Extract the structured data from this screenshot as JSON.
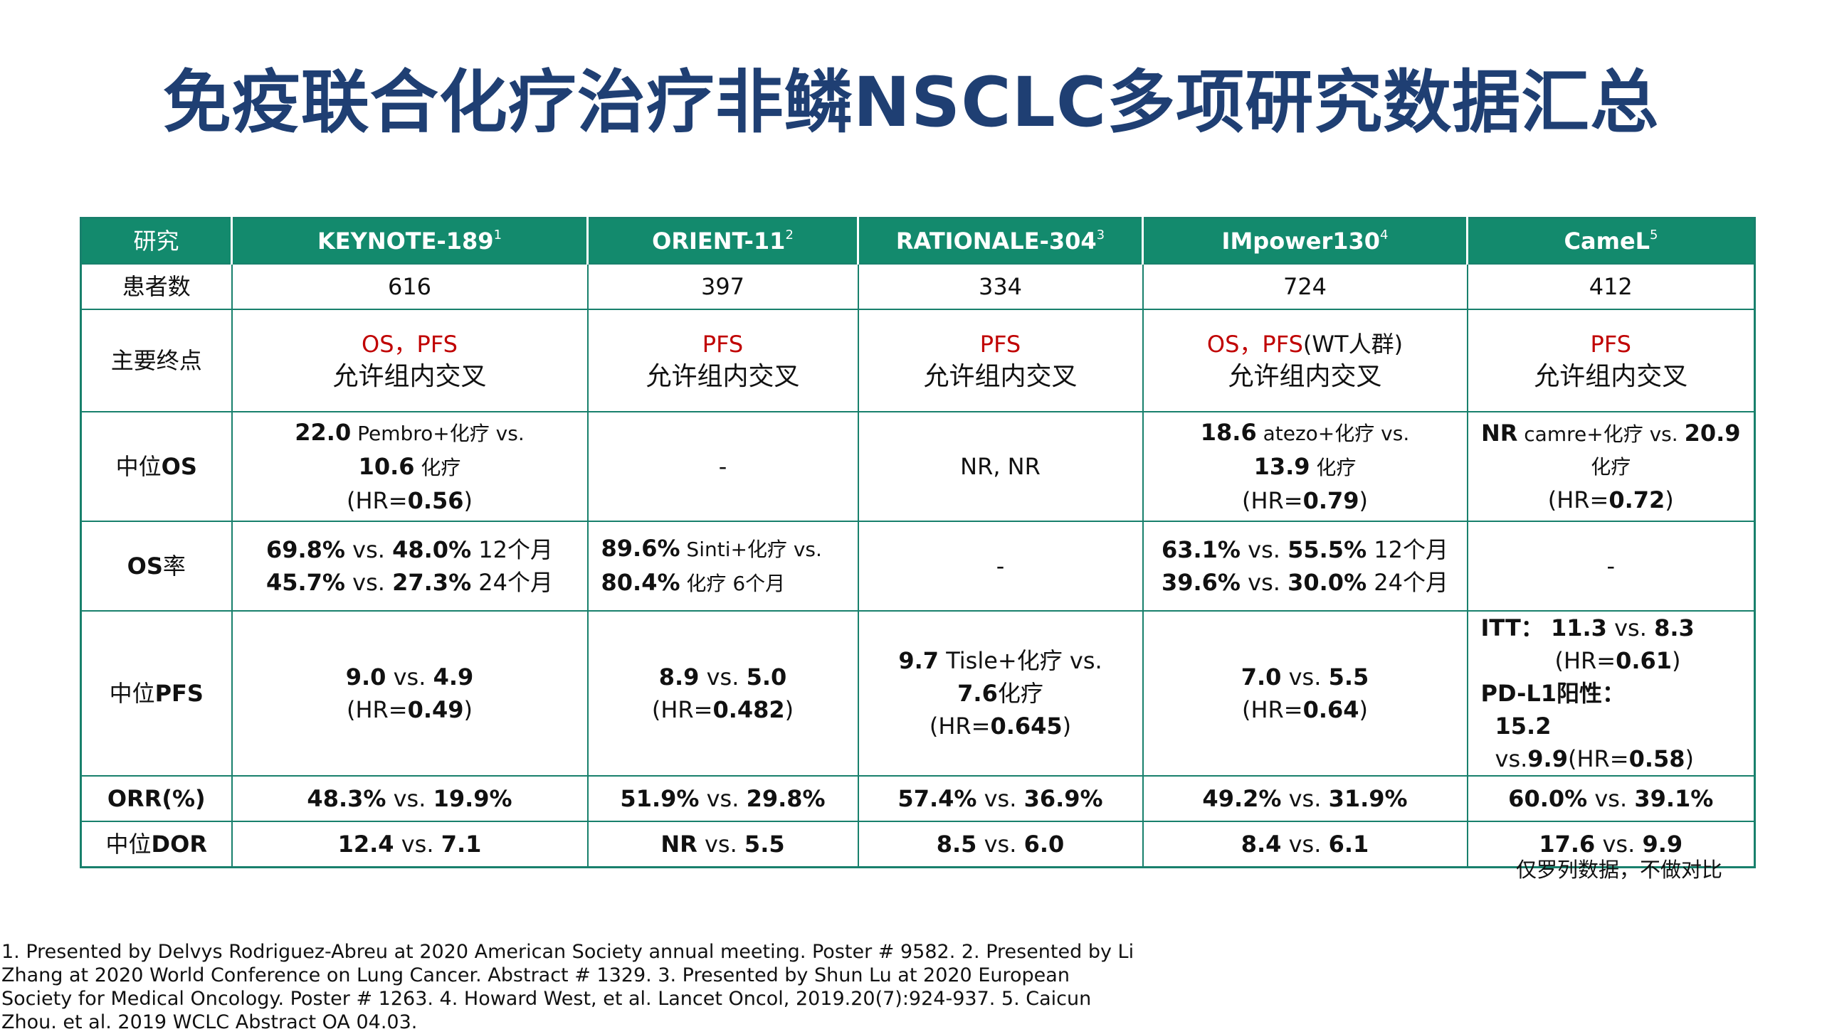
{
  "title": "免疫联合化疗治疗非鳞NSCLC多项研究数据汇总",
  "table": {
    "header": {
      "label": "研究",
      "studies": [
        {
          "name": "KEYNOTE-189",
          "ref": "1"
        },
        {
          "name": "ORIENT-11",
          "ref": "2"
        },
        {
          "name": "RATIONALE-304",
          "ref": "3"
        },
        {
          "name": "IMpower130",
          "ref": "4"
        },
        {
          "name": "CameL",
          "ref": "5"
        }
      ]
    },
    "patients": {
      "label": "患者数",
      "values": [
        "616",
        "397",
        "334",
        "724",
        "412"
      ]
    },
    "endpoint": {
      "label": "主要终点",
      "cells": [
        {
          "red": "OS，PFS",
          "red_suffix": "",
          "text": "允许组内交叉"
        },
        {
          "red": "PFS",
          "red_suffix": "",
          "text": "允许组内交叉"
        },
        {
          "red": "PFS",
          "red_suffix": "",
          "text": "允许组内交叉"
        },
        {
          "red": "OS，PFS",
          "red_suffix": "(WT人群)",
          "text": "允许组内交叉"
        },
        {
          "red": "PFS",
          "red_suffix": "",
          "text": "允许组内交叉"
        }
      ]
    },
    "median_os": {
      "label_main": "中位",
      "label_bold": "OS",
      "c1": {
        "a_val": "22.0",
        "a_txt": " Pembro+化疗  vs.",
        "b_val": "10.6",
        "b_txt": " 化疗",
        "hr_pre": "(HR=",
        "hr_val": "0.56",
        "hr_post": ")"
      },
      "c2": "-",
      "c3": "NR, NR",
      "c4": {
        "a_val": "18.6",
        "a_txt": " atezo+化疗 vs.",
        "b_val": "13.9",
        "b_txt": " 化疗",
        "hr_pre": "(HR=",
        "hr_val": "0.79",
        "hr_post": ")"
      },
      "c5": {
        "a_val": "NR",
        "a_txt": " camre+化疗 vs. ",
        "a_val2": "20.9",
        "b_txt": "化疗",
        "hr_pre": "(HR=",
        "hr_val": "0.72",
        "hr_post": ")"
      }
    },
    "os_rate": {
      "label_bold": "OS",
      "label_main": "率",
      "c1": {
        "l1_a": "69.8%",
        "l1_vs": " vs. ",
        "l1_b": "48.0%",
        "l1_t": " 12个月",
        "l2_a": "45.7%",
        "l2_vs": " vs. ",
        "l2_b": "27.3%",
        "l2_t": " 24个月"
      },
      "c2": {
        "l1_a": "89.6%",
        "l1_t": " Sinti+化疗 vs.",
        "l2_a": "80.4%",
        "l2_t": " 化疗 6个月"
      },
      "c3": "-",
      "c4": {
        "l1_a": "63.1%",
        "l1_vs": " vs. ",
        "l1_b": "55.5%",
        "l1_t": " 12个月",
        "l2_a": "39.6%",
        "l2_vs": " vs. ",
        "l2_b": "30.0%",
        "l2_t": " 24个月"
      },
      "c5": "-"
    },
    "median_pfs": {
      "label_main": "中位",
      "label_bold": "PFS",
      "c1": {
        "a": "9.0",
        "vs": " vs. ",
        "b": "4.9",
        "hr_pre": "(HR=",
        "hr_val": "0.49",
        "hr_post": ")"
      },
      "c2": {
        "a": "8.9",
        "vs": " vs. ",
        "b": "5.0",
        "hr_pre": "(HR=",
        "hr_val": "0.482",
        "hr_post": ")"
      },
      "c3": {
        "a": "9.7",
        "a_txt": " Tisle+化疗 vs.",
        "b": "7.6",
        "b_txt": "化疗",
        "hr_pre": "(HR=",
        "hr_val": "0.645",
        "hr_post": ")"
      },
      "c4": {
        "a": "7.0",
        "vs": " vs. ",
        "b": "5.5",
        "hr_pre": "(HR=",
        "hr_val": "0.64",
        "hr_post": ")"
      },
      "c5": {
        "itt_label": "ITT：",
        "itt_a": "11.3",
        "itt_vs": " vs. ",
        "itt_b": "8.3",
        "itt_hr_pre": "(HR=",
        "itt_hr_val": "0.61",
        "itt_hr_post": ")",
        "pd_label": "PD-L1阳性：",
        "pd_a": "15.2",
        "pd_vs": " vs.",
        "pd_b": "9.9",
        "pd_hr_pre": "(HR=",
        "pd_hr_val": "0.58",
        "pd_hr_post": ")"
      }
    },
    "orr": {
      "label": "ORR(%)",
      "cells": [
        {
          "a": "48.3%",
          "vs": " vs. ",
          "b": "19.9%"
        },
        {
          "a": "51.9%",
          "vs": " vs. ",
          "b": "29.8%"
        },
        {
          "a": "57.4%",
          "vs": " vs. ",
          "b": "36.9%"
        },
        {
          "a": "49.2%",
          "vs": " vs. ",
          "b": "31.9%"
        },
        {
          "a": "60.0%",
          "vs": " vs. ",
          "b": "39.1%"
        }
      ]
    },
    "dor": {
      "label_main": "中位",
      "label_bold": "DOR",
      "cells": [
        {
          "a": "12.4",
          "vs": " vs. ",
          "b": "7.1"
        },
        {
          "a": "NR",
          "vs": " vs. ",
          "b": "5.5"
        },
        {
          "a": "8.5",
          "vs": " vs. ",
          "b": "6.0"
        },
        {
          "a": "8.4",
          "vs": " vs. ",
          "b": "6.1"
        },
        {
          "a": "17.6",
          "vs": " vs. ",
          "b": "9.9"
        }
      ]
    }
  },
  "note": "仅罗列数据，不做对比",
  "footer": "1. Presented by Delvys Rodriguez-Abreu at 2020 American Society annual meeting. Poster # 9582. 2. Presented by Li Zhang at 2020 World Conference on Lung Cancer. Abstract # 1329. 3. Presented by Shun Lu at 2020 European Society for Medical Oncology. Poster # 1263. 4. Howard West, et al. Lancet Oncol, 2019.20(7):924-937. 5. Caicun Zhou. et al. 2019 WCLC Abstract OA 04.03."
}
